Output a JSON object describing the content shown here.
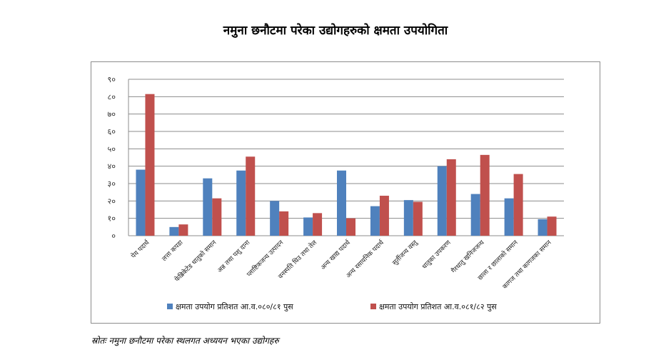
{
  "title": "नमुना छनौटमा परेका उद्योगहरुको क्षमता उपयोगिता",
  "source": "स्रोतः नमुना छनौटमा परेका स्थलगत अध्ययन भएका उद्योगहरु",
  "chart_data": {
    "type": "bar",
    "title": "नमुना छनौटमा परेका उद्योगहरुको क्षमता उपयोगिता",
    "ylim": [
      0,
      90
    ],
    "yticks": [
      "०",
      "१०",
      "२०",
      "३०",
      "४०",
      "५०",
      "६०",
      "७०",
      "८०",
      "९०"
    ],
    "grid": true,
    "legend_position": "bottom",
    "categories": [
      "पेय पदार्थ",
      "लत्ता कपडा",
      "फेब्रिकेटेड धातुको समान",
      "अन्न तथा पशु दाना",
      "प्लाष्टिकजन्य उत्पादन",
      "वनस्पति घिउ तथा तेल",
      "अन्य खाद्य पदार्थ",
      "अन्य रसायनिक पदार्थ",
      "सुर्तीजन्य वस्तु",
      "धातुका उपकरण",
      "गैरधातु खनिजजन्य",
      "छाला र छालाको समान",
      "कागज तथा कागजका समान"
    ],
    "series": [
      {
        "name": "क्षमता उपयोग प्रतिशत आ.व.०८०/८१ पुस",
        "color": "#4f81bd",
        "values": [
          38,
          5,
          33,
          37.5,
          20,
          10.5,
          37.5,
          17,
          20.5,
          40,
          24,
          21.5,
          9.5
        ]
      },
      {
        "name": "क्षमता उपयोग प्रतिशत आ.व.०८१/८२ पुस",
        "color": "#c0504d",
        "values": [
          81.5,
          6.5,
          21.5,
          45.5,
          14,
          13,
          10,
          23,
          19.5,
          44,
          46.5,
          35.5,
          11
        ]
      }
    ]
  }
}
